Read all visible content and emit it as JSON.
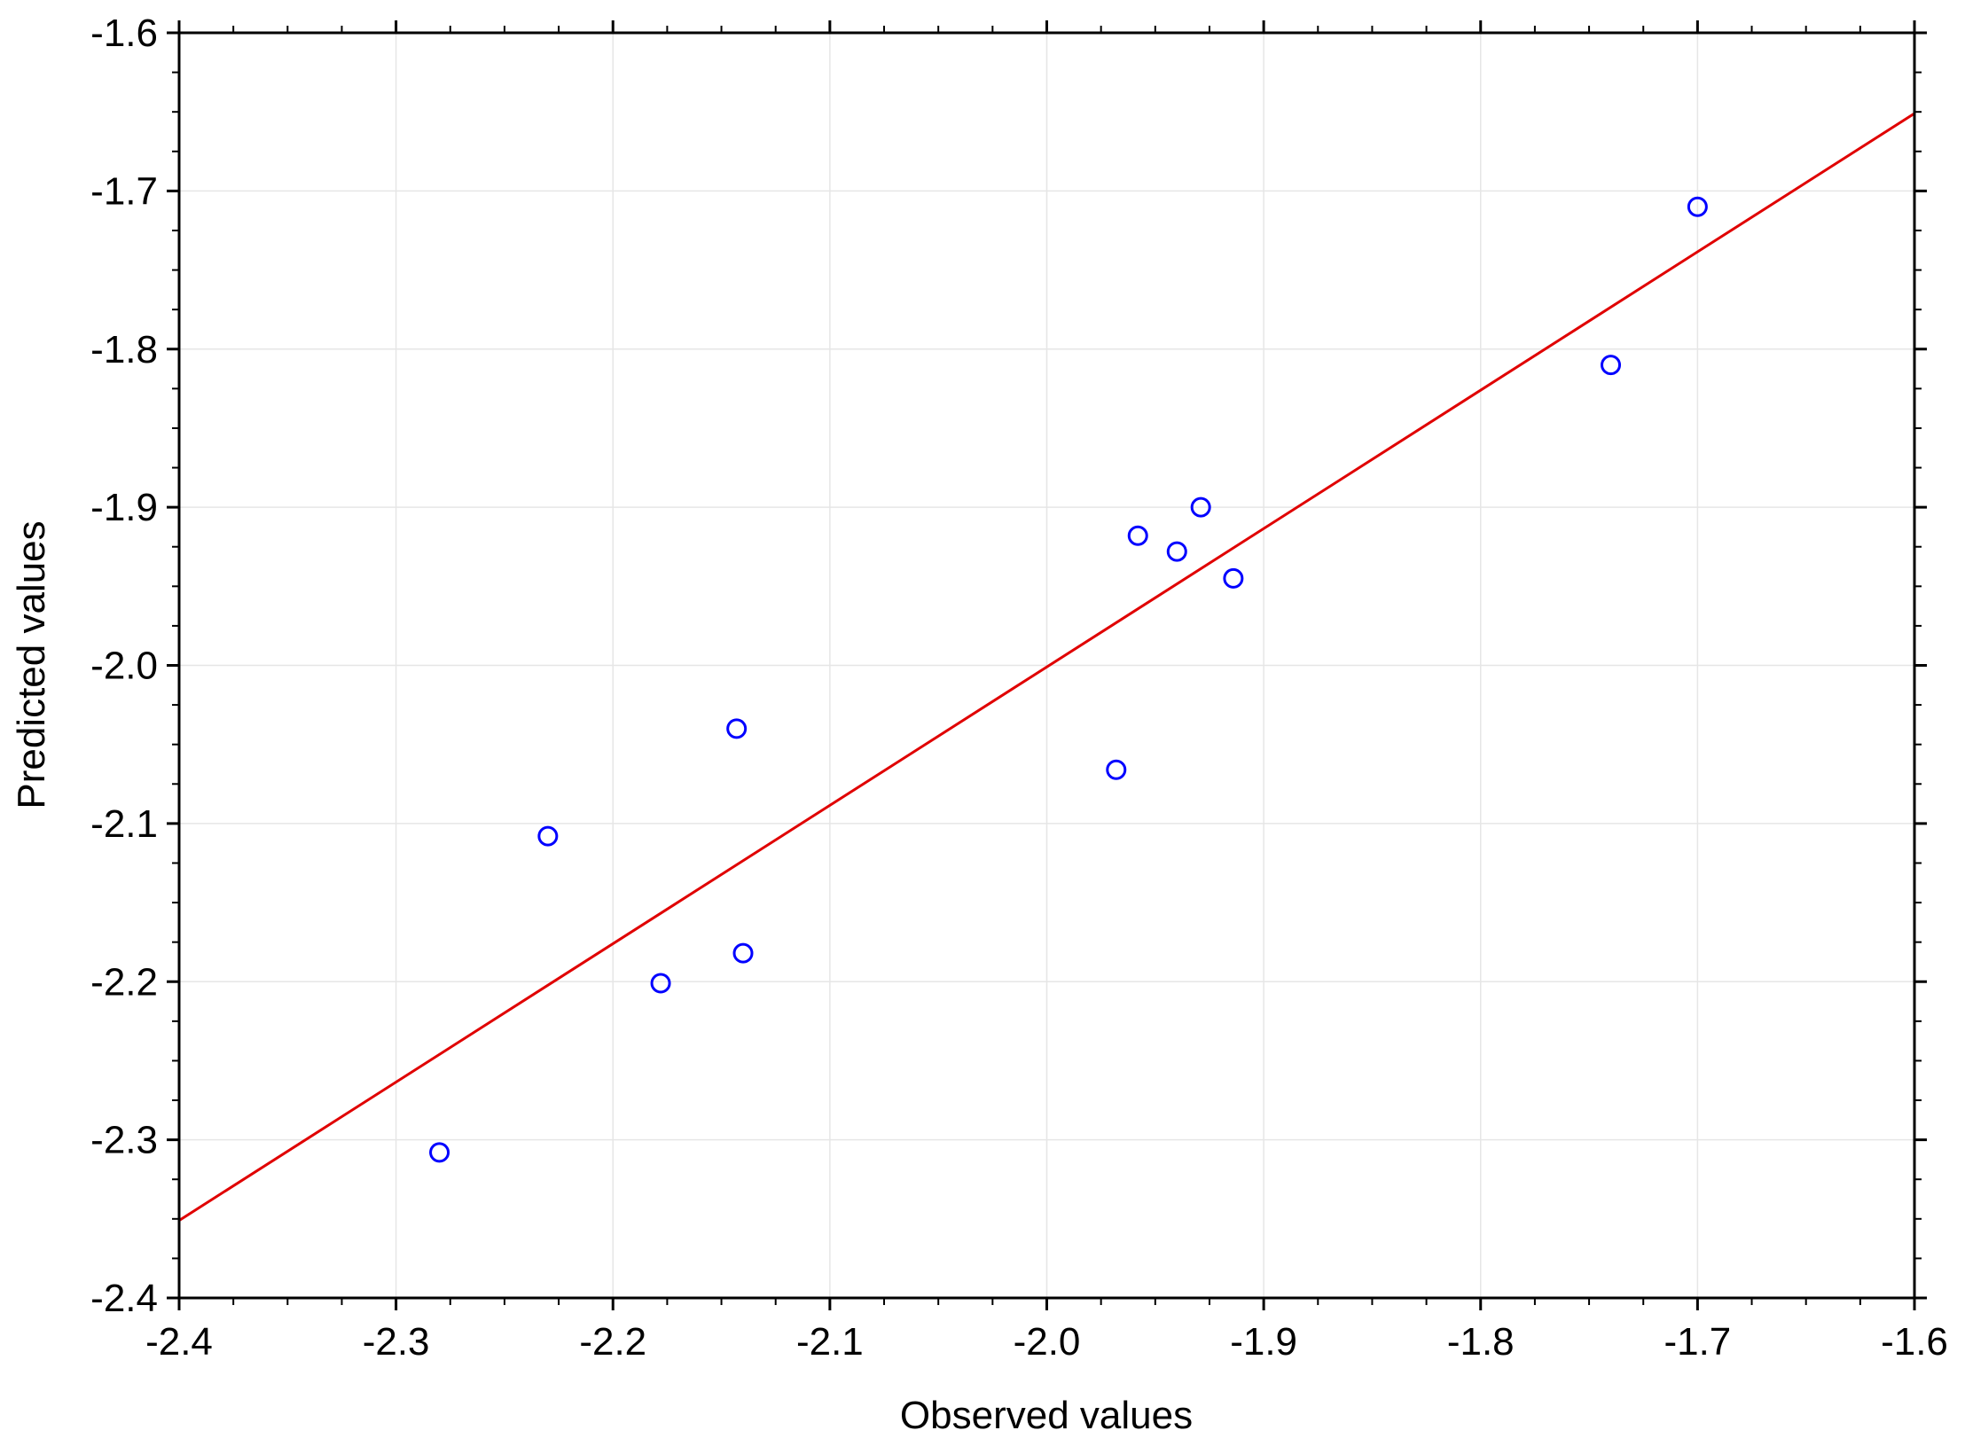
{
  "chart_data": {
    "type": "scatter",
    "title": "",
    "xlabel": "Observed values",
    "ylabel": "Predicted values",
    "xlim": [
      -2.4,
      -1.6
    ],
    "ylim": [
      -2.4,
      -1.6
    ],
    "x_ticks": [
      "-2.4",
      "-2.3",
      "-2.2",
      "-2.1",
      "-2.0",
      "-1.9",
      "-1.8",
      "-1.7",
      "-1.6"
    ],
    "y_ticks": [
      "-1.6",
      "-1.7",
      "-1.8",
      "-1.9",
      "-2.0",
      "-2.1",
      "-2.2",
      "-2.3",
      "-2.4"
    ],
    "grid": true,
    "legend": "none",
    "series": [
      {
        "marker": "open-circle",
        "color": "#0000ff",
        "points": [
          {
            "x": -2.28,
            "y": -2.308
          },
          {
            "x": -2.23,
            "y": -2.108
          },
          {
            "x": -2.178,
            "y": -2.201
          },
          {
            "x": -2.143,
            "y": -2.04
          },
          {
            "x": -2.14,
            "y": -2.182
          },
          {
            "x": -1.968,
            "y": -2.066
          },
          {
            "x": -1.958,
            "y": -1.918
          },
          {
            "x": -1.94,
            "y": -1.928
          },
          {
            "x": -1.929,
            "y": -1.9
          },
          {
            "x": -1.914,
            "y": -1.945
          },
          {
            "x": -1.74,
            "y": -1.81
          },
          {
            "x": -1.7,
            "y": -1.71
          }
        ]
      }
    ],
    "fit_line": {
      "color": "#e00000",
      "start": {
        "x": -2.4,
        "y": -2.351
      },
      "end": {
        "x": -1.6,
        "y": -1.651
      }
    }
  }
}
